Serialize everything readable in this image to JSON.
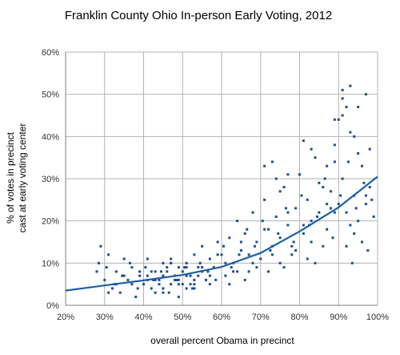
{
  "chart_data": {
    "type": "scatter",
    "title": "Franklin County Ohio In-person Early Voting, 2012",
    "xlabel": "overall percent Obama in precinct",
    "ylabel_lines": [
      "% of votes in precinct",
      "cast at early voting center"
    ],
    "xlim": [
      0.2,
      1.0
    ],
    "ylim": [
      0.0,
      0.6
    ],
    "x_ticks": [
      "20%",
      "30%",
      "40%",
      "50%",
      "60%",
      "70%",
      "80%",
      "90%",
      "100%"
    ],
    "y_ticks": [
      "0%",
      "10%",
      "20%",
      "30%",
      "40%",
      "50%",
      "60%"
    ],
    "grid": true,
    "legend": "none",
    "colors": {
      "points": "#1f4e8c",
      "trend": "#1f5fa0",
      "grid": "#b3b3b3",
      "axis": "#808080"
    },
    "series": [
      {
        "kind": "points",
        "x": [
          0.28,
          0.29,
          0.3,
          0.31,
          0.32,
          0.33,
          0.34,
          0.35,
          0.36,
          0.37,
          0.38,
          0.39,
          0.4,
          0.41,
          0.42,
          0.43,
          0.44,
          0.45,
          0.46,
          0.47,
          0.48,
          0.49,
          0.5,
          0.51,
          0.52,
          0.53,
          0.54,
          0.55,
          0.56,
          0.57,
          0.58,
          0.59,
          0.6,
          0.61,
          0.62,
          0.63,
          0.64,
          0.65,
          0.66,
          0.67,
          0.68,
          0.69,
          0.7,
          0.71,
          0.72,
          0.73,
          0.74,
          0.75,
          0.76,
          0.77,
          0.78,
          0.79,
          0.8,
          0.81,
          0.82,
          0.83,
          0.84,
          0.85,
          0.86,
          0.87,
          0.88,
          0.89,
          0.9,
          0.91,
          0.92,
          0.93,
          0.94,
          0.95,
          0.96,
          0.97,
          0.98,
          0.99,
          0.285,
          0.305,
          0.325,
          0.345,
          0.365,
          0.385,
          0.405,
          0.425,
          0.445,
          0.465,
          0.485,
          0.505,
          0.525,
          0.545,
          0.565,
          0.585,
          0.605,
          0.625,
          0.645,
          0.665,
          0.685,
          0.705,
          0.725,
          0.745,
          0.765,
          0.785,
          0.805,
          0.825,
          0.845,
          0.865,
          0.885,
          0.905,
          0.925,
          0.945,
          0.965,
          0.985,
          0.31,
          0.33,
          0.35,
          0.37,
          0.39,
          0.41,
          0.43,
          0.45,
          0.47,
          0.49,
          0.51,
          0.53,
          0.55,
          0.57,
          0.59,
          0.61,
          0.63,
          0.65,
          0.67,
          0.69,
          0.71,
          0.73,
          0.75,
          0.77,
          0.79,
          0.81,
          0.83,
          0.85,
          0.87,
          0.89,
          0.91,
          0.93,
          0.95,
          0.97,
          0.41,
          0.43,
          0.45,
          0.47,
          0.49,
          0.51,
          0.53,
          0.55,
          0.57,
          0.44,
          0.46,
          0.48,
          0.5,
          0.52,
          0.54,
          0.56,
          0.42,
          0.47,
          0.51,
          0.53,
          0.49,
          0.45,
          0.62,
          0.64,
          0.66,
          0.68,
          0.72,
          0.74,
          0.76,
          0.78,
          0.82,
          0.84,
          0.86,
          0.88,
          0.92,
          0.94,
          0.96,
          0.71,
          0.73,
          0.75,
          0.77,
          0.81,
          0.83,
          0.87,
          0.89,
          0.91,
          0.93,
          0.95,
          0.97,
          0.9,
          0.92,
          0.94,
          0.98,
          0.89,
          0.91,
          0.935,
          0.975
        ],
        "y": [
          0.08,
          0.14,
          0.06,
          0.12,
          0.04,
          0.08,
          0.03,
          0.11,
          0.06,
          0.09,
          0.02,
          0.07,
          0.05,
          0.11,
          0.04,
          0.08,
          0.06,
          0.03,
          0.09,
          0.05,
          0.07,
          0.02,
          0.08,
          0.1,
          0.05,
          0.12,
          0.07,
          0.14,
          0.06,
          0.11,
          0.09,
          0.15,
          0.12,
          0.07,
          0.16,
          0.1,
          0.2,
          0.13,
          0.17,
          0.08,
          0.22,
          0.15,
          0.11,
          0.25,
          0.18,
          0.12,
          0.21,
          0.16,
          0.28,
          0.19,
          0.14,
          0.23,
          0.31,
          0.17,
          0.25,
          0.2,
          0.35,
          0.22,
          0.28,
          0.18,
          0.27,
          0.38,
          0.24,
          0.3,
          0.22,
          0.41,
          0.26,
          0.2,
          0.33,
          0.24,
          0.28,
          0.21,
          0.1,
          0.09,
          0.05,
          0.07,
          0.1,
          0.04,
          0.09,
          0.06,
          0.08,
          0.03,
          0.06,
          0.09,
          0.04,
          0.1,
          0.08,
          0.06,
          0.14,
          0.09,
          0.12,
          0.18,
          0.14,
          0.2,
          0.13,
          0.17,
          0.23,
          0.15,
          0.26,
          0.19,
          0.21,
          0.3,
          0.16,
          0.26,
          0.34,
          0.23,
          0.29,
          0.25,
          0.03,
          0.05,
          0.07,
          0.05,
          0.08,
          0.06,
          0.03,
          0.07,
          0.1,
          0.05,
          0.07,
          0.04,
          0.09,
          0.05,
          0.12,
          0.1,
          0.08,
          0.15,
          0.12,
          0.09,
          0.18,
          0.14,
          0.1,
          0.22,
          0.13,
          0.19,
          0.15,
          0.29,
          0.24,
          0.22,
          0.45,
          0.19,
          0.36,
          0.26,
          0.07,
          0.06,
          0.04,
          0.1,
          0.06,
          0.09,
          0.05,
          0.08,
          0.07,
          0.05,
          0.08,
          0.06,
          0.05,
          0.07,
          0.09,
          0.06,
          0.08,
          0.11,
          0.04,
          0.06,
          0.09,
          0.1,
          0.05,
          0.08,
          0.06,
          0.1,
          0.08,
          0.3,
          0.09,
          0.12,
          0.11,
          0.1,
          0.14,
          0.23,
          0.14,
          0.17,
          0.15,
          0.33,
          0.34,
          0.27,
          0.31,
          0.39,
          0.37,
          0.33,
          0.34,
          0.51,
          0.52,
          0.47,
          0.5,
          0.44,
          0.47,
          0.4,
          0.37,
          0.44,
          0.49,
          0.1,
          0.13
        ]
      }
    ],
    "trendline": {
      "type": "exponential",
      "x": [
        0.2,
        0.3,
        0.4,
        0.5,
        0.6,
        0.7,
        0.8,
        0.9,
        1.0
      ],
      "y": [
        0.035,
        0.047,
        0.059,
        0.072,
        0.091,
        0.124,
        0.175,
        0.232,
        0.305
      ]
    }
  }
}
